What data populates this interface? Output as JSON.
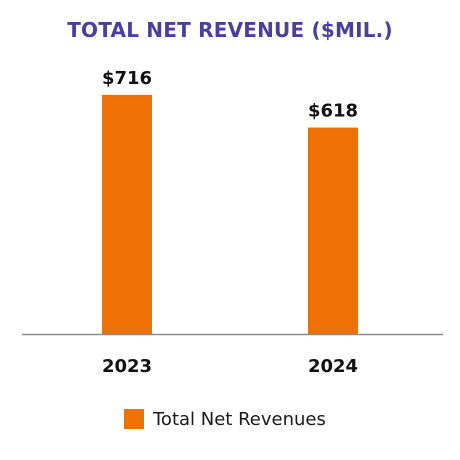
{
  "chart_data": {
    "type": "bar",
    "title": "TOTAL NET REVENUE ($MIL.)",
    "categories": [
      "2023",
      "2024"
    ],
    "series": [
      {
        "name": "Total Net Revenues",
        "values": [
          716,
          618
        ],
        "data_labels": [
          "$716",
          "$618"
        ]
      }
    ],
    "ylim": [
      0,
      1000
    ],
    "grid": false,
    "legend": "bottom-center"
  },
  "colors": {
    "title": "#4a3f9e",
    "bar": "#ee7203",
    "axis": "#8c8c8c",
    "text": "#111111"
  }
}
